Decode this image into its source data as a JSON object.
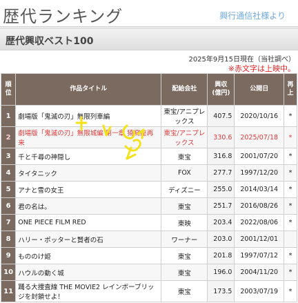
{
  "header": {
    "title": "歴代ランキング",
    "credit": "興行通信社様より"
  },
  "subbar": {
    "title": "歴代興収ベスト100"
  },
  "asof": "2025年9月15日現在（当社調べ）",
  "note": "※赤文字は上映中。",
  "table": {
    "columns": {
      "rank": "順\n位",
      "title": "作品タイトル",
      "distributor": "配給会社",
      "gross": "興収\n(億円)",
      "date": "公開日",
      "star": "再\n上"
    },
    "rows": [
      {
        "rank": "1",
        "title": "劇場版「鬼滅の刃」無限列車編",
        "distributor": "東宝/アニプレックス",
        "gross": "407.5",
        "date": "2020/10/16",
        "star": "*"
      },
      {
        "rank": "2",
        "title": "劇場版「鬼滅の刃」無限城編 第一章 猗窩座再来",
        "distributor": "東宝/アニプレックス",
        "gross": "330.6",
        "date": "2025/07/18",
        "star": "*"
      },
      {
        "rank": "3",
        "title": "千と千尋の神隠し",
        "distributor": "東宝",
        "gross": "316.8",
        "date": "2001/07/20",
        "star": "*"
      },
      {
        "rank": "4",
        "title": "タイタニック",
        "distributor": "FOX",
        "gross": "277.7",
        "date": "1997/12/20",
        "star": "*"
      },
      {
        "rank": "5",
        "title": "アナと雪の女王",
        "distributor": "ディズニー",
        "gross": "255.0",
        "date": "2014/03/14",
        "star": "*"
      },
      {
        "rank": "6",
        "title": "君の名は。",
        "distributor": "東宝",
        "gross": "251.7",
        "date": "2016/08/26",
        "star": "*"
      },
      {
        "rank": "7",
        "title": "ONE PIECE FILM RED",
        "distributor": "東映",
        "gross": "203.4",
        "date": "2022/08/06",
        "star": "*"
      },
      {
        "rank": "8",
        "title": "ハリー・ポッターと賢者の石",
        "distributor": "ワーナー",
        "gross": "203.0",
        "date": "2001/12/01",
        "star": ""
      },
      {
        "rank": "9",
        "title": "もののけ姫",
        "distributor": "東宝",
        "gross": "201.8",
        "date": "1997/07/12",
        "star": "*"
      },
      {
        "rank": "10",
        "title": "ハウルの動く城",
        "distributor": "東宝",
        "gross": "196.0",
        "date": "2004/11/20",
        "star": "*"
      },
      {
        "rank": "11",
        "title": "踊る大捜査線 THE MOVIE2 レインボーブリッジを封鎖せよ！",
        "distributor": "東宝",
        "gross": "173.5",
        "date": "2003/07/19",
        "star": "*"
      }
    ]
  },
  "colors": {
    "header_bg": "#7a6a60",
    "current_text": "#e03a3a",
    "credit": "#6fa8dc",
    "sparkle": "#f3e21a"
  }
}
